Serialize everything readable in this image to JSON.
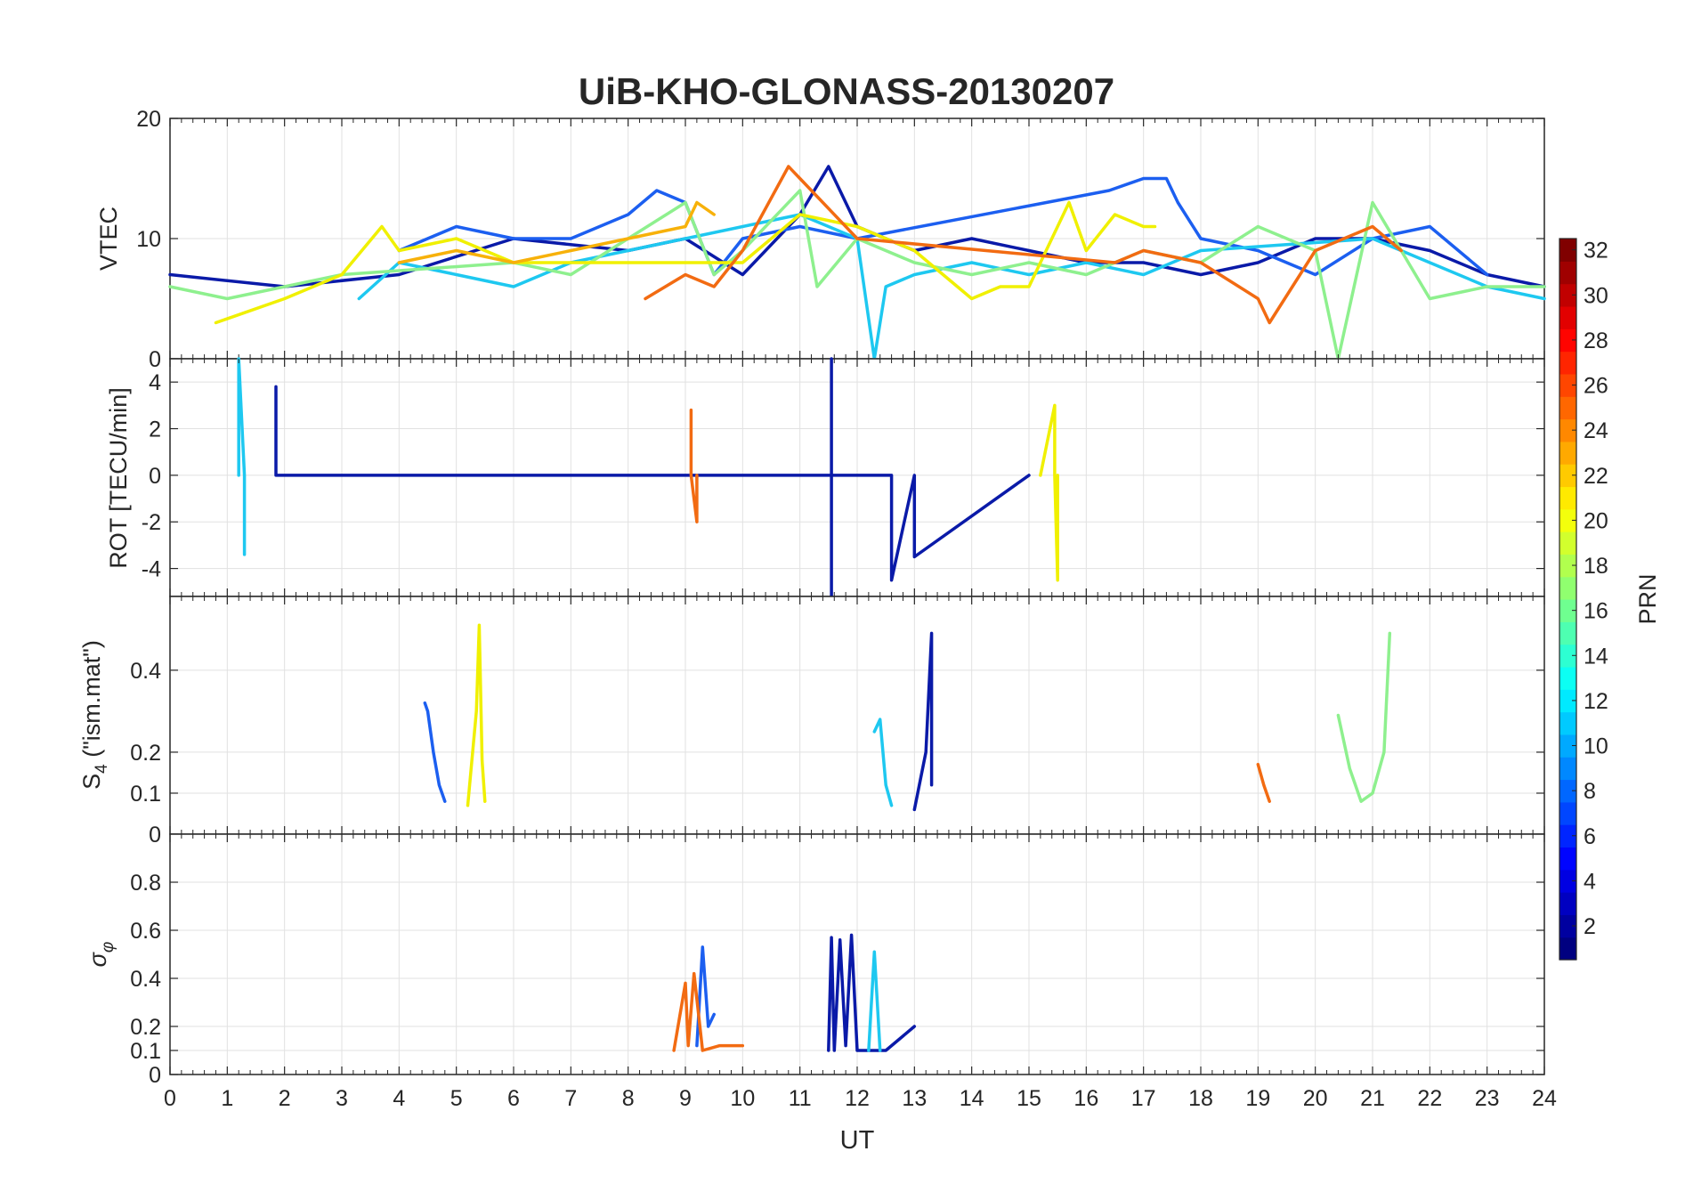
{
  "chart_data": [
    {
      "type": "line",
      "title": "UiB-KHO-GLONASS-20130207",
      "panel": "VTEC",
      "ylabel": "VTEC",
      "ylim": [
        0,
        20
      ],
      "yticks": [
        0,
        10,
        20
      ],
      "xlim": [
        0,
        24
      ],
      "grid": true,
      "series": [
        {
          "prn": 2,
          "color": "#0a1aa8",
          "x": [
            0,
            2,
            4,
            6,
            8,
            9,
            10,
            11,
            11.5,
            12,
            13,
            14,
            15,
            16,
            17,
            18,
            19,
            20,
            21,
            22,
            23,
            24
          ],
          "y": [
            7,
            6,
            7,
            10,
            9,
            10,
            7,
            12,
            16,
            11,
            9,
            10,
            9,
            8,
            8,
            7,
            8,
            10,
            10,
            9,
            7,
            6
          ]
        },
        {
          "prn": 6,
          "color": "#1c5ff0",
          "x": [
            4,
            5,
            6,
            7,
            8,
            8.5,
            9,
            9.5,
            10,
            11,
            12,
            16.4,
            17,
            17.4,
            17.6,
            18,
            19,
            20,
            21,
            22,
            23
          ],
          "y": [
            9,
            11,
            10,
            10,
            12,
            14,
            13,
            7,
            10,
            11,
            10,
            14,
            15,
            15,
            13,
            10,
            9,
            7,
            10,
            11,
            7
          ]
        },
        {
          "prn": 12,
          "color": "#1ec8f0",
          "x": [
            3.3,
            4,
            5,
            6,
            7,
            10,
            11,
            12,
            12.3,
            12.5,
            13,
            14,
            15,
            16,
            17,
            18,
            21,
            22,
            23,
            24
          ],
          "y": [
            5,
            8,
            7,
            6,
            8,
            11,
            12,
            10,
            0,
            6,
            7,
            8,
            7,
            8,
            7,
            9,
            10,
            8,
            6,
            5
          ]
        },
        {
          "prn": 17,
          "color": "#8ef08e",
          "x": [
            0,
            1,
            2,
            3,
            6,
            7,
            9,
            9.5,
            10,
            11,
            11.3,
            12,
            13,
            14,
            15,
            16,
            17,
            18,
            19,
            20,
            20.4,
            21,
            21.5,
            22,
            23,
            24
          ],
          "y": [
            6,
            5,
            6,
            7,
            8,
            7,
            13,
            7,
            9,
            14,
            6,
            10,
            8,
            7,
            8,
            7,
            9,
            8,
            11,
            9,
            0,
            13,
            9,
            5,
            6,
            6
          ]
        },
        {
          "prn": 20,
          "color": "#f0f000",
          "x": [
            0.8,
            2,
            3,
            3.7,
            4,
            5,
            6,
            7,
            10,
            11,
            12,
            13,
            14,
            14.5,
            15,
            15.7,
            16,
            16.5,
            17,
            17.2
          ],
          "y": [
            3,
            5,
            7,
            11,
            9,
            10,
            8,
            8,
            8,
            12,
            11,
            9,
            5,
            6,
            6,
            13,
            9,
            12,
            11,
            11
          ]
        },
        {
          "prn": 22,
          "color": "#f7b10a",
          "x": [
            4,
            5,
            6,
            7,
            8,
            9,
            9.2,
            9.5
          ],
          "y": [
            8,
            9,
            8,
            9,
            10,
            11,
            13,
            12
          ]
        },
        {
          "prn": 23,
          "color": "#f26b12",
          "x": [
            8.3,
            9,
            9.5,
            10,
            10.8,
            11,
            12,
            16.5,
            17,
            18,
            19,
            19.2,
            20,
            20.5,
            21,
            21.5
          ],
          "y": [
            5,
            7,
            6,
            9,
            16,
            15,
            10,
            8,
            9,
            8,
            5,
            3,
            9,
            10,
            11,
            9
          ]
        }
      ]
    },
    {
      "type": "line",
      "panel": "ROT",
      "ylabel": "ROT [TECU/min]",
      "ylim": [
        -5.2,
        5
      ],
      "yticks": [
        -4,
        -2,
        0,
        2,
        4
      ],
      "xlim": [
        0,
        24
      ],
      "grid": true,
      "series": [
        {
          "prn": 2,
          "color": "#0a1aa8",
          "x": [
            1.85,
            1.85,
            1.85,
            11.55,
            11.55,
            11.55,
            11.55,
            12.6,
            12.6,
            13,
            13,
            15
          ],
          "y": [
            0,
            3.8,
            0,
            0,
            5,
            -5.2,
            0,
            0,
            -4.5,
            0,
            -3.5,
            0
          ]
        },
        {
          "prn": 12,
          "color": "#1ec8f0",
          "x": [
            1.2,
            1.2,
            1.3,
            1.3
          ],
          "y": [
            0,
            5,
            0,
            -3.4
          ]
        },
        {
          "prn": 20,
          "color": "#f0f000",
          "x": [
            15.2,
            15.45,
            15.45,
            15.5,
            15.5
          ],
          "y": [
            0,
            3,
            0,
            -4.5,
            0
          ]
        },
        {
          "prn": 23,
          "color": "#f26b12",
          "x": [
            9.1,
            9.1,
            9.1,
            9.2,
            9.2
          ],
          "y": [
            0,
            2.8,
            0,
            -2,
            0
          ]
        }
      ]
    },
    {
      "type": "line",
      "panel": "S4",
      "ylabel": "S4 (\"ism.mat\")",
      "ylabel_main": "S",
      "ylabel_sub": "4",
      "ylabel_rest": " (\"ism.mat\")",
      "ylim": [
        0,
        0.58
      ],
      "yticks": [
        0,
        0.1,
        0.2,
        0.4
      ],
      "xlim": [
        0,
        24
      ],
      "grid": true,
      "series": [
        {
          "prn": 2,
          "color": "#0a1aa8",
          "x": [
            13,
            13.2,
            13.3,
            13.3
          ],
          "y": [
            0.06,
            0.2,
            0.49,
            0.12
          ]
        },
        {
          "prn": 6,
          "color": "#1c5ff0",
          "x": [
            4.45,
            4.5,
            4.6,
            4.7,
            4.8
          ],
          "y": [
            0.32,
            0.3,
            0.2,
            0.12,
            0.08
          ]
        },
        {
          "prn": 12,
          "color": "#1ec8f0",
          "x": [
            12.3,
            12.4,
            12.5,
            12.6
          ],
          "y": [
            0.25,
            0.28,
            0.12,
            0.07
          ]
        },
        {
          "prn": 17,
          "color": "#8ef08e",
          "x": [
            20.4,
            20.6,
            20.8,
            21,
            21.2,
            21.3
          ],
          "y": [
            0.29,
            0.16,
            0.08,
            0.1,
            0.2,
            0.49
          ]
        },
        {
          "prn": 20,
          "color": "#f0f000",
          "x": [
            5.2,
            5.35,
            5.4,
            5.45,
            5.5
          ],
          "y": [
            0.07,
            0.3,
            0.51,
            0.18,
            0.08
          ]
        },
        {
          "prn": 23,
          "color": "#f26b12",
          "x": [
            19,
            19.1,
            19.2
          ],
          "y": [
            0.17,
            0.12,
            0.08
          ]
        }
      ]
    },
    {
      "type": "line",
      "panel": "sigma_phi",
      "ylabel": "σφ",
      "ylabel_main": "σ",
      "ylabel_sub": "φ",
      "ylim": [
        0,
        1
      ],
      "yticks": [
        0,
        0.1,
        0.2,
        0.4,
        0.6,
        0.8
      ],
      "xlim": [
        0,
        24
      ],
      "xticks": [
        0,
        1,
        2,
        3,
        4,
        5,
        6,
        7,
        8,
        9,
        10,
        11,
        12,
        13,
        14,
        15,
        16,
        17,
        18,
        19,
        20,
        21,
        22,
        23,
        24
      ],
      "xlabel": "UT",
      "grid": true,
      "series": [
        {
          "prn": 2,
          "color": "#0a1aa8",
          "x": [
            11.5,
            11.55,
            11.6,
            11.7,
            11.8,
            11.9,
            12,
            12.5,
            13
          ],
          "y": [
            0.1,
            0.57,
            0.1,
            0.56,
            0.12,
            0.58,
            0.1,
            0.1,
            0.2
          ]
        },
        {
          "prn": 6,
          "color": "#1c5ff0",
          "x": [
            9.2,
            9.3,
            9.4,
            9.5
          ],
          "y": [
            0.12,
            0.53,
            0.2,
            0.25
          ]
        },
        {
          "prn": 12,
          "color": "#1ec8f0",
          "x": [
            12.2,
            12.3,
            12.4
          ],
          "y": [
            0.1,
            0.51,
            0.1
          ]
        },
        {
          "prn": 23,
          "color": "#f26b12",
          "x": [
            8.8,
            9,
            9.05,
            9.15,
            9.3,
            9.6,
            10
          ],
          "y": [
            0.1,
            0.38,
            0.12,
            0.42,
            0.1,
            0.12,
            0.12
          ]
        }
      ]
    }
  ],
  "colorbar": {
    "label": "PRN",
    "min": 1,
    "max": 32,
    "ticks": [
      2,
      4,
      6,
      8,
      10,
      12,
      14,
      16,
      18,
      20,
      22,
      24,
      26,
      28,
      30,
      32
    ],
    "colormap": "jet"
  }
}
